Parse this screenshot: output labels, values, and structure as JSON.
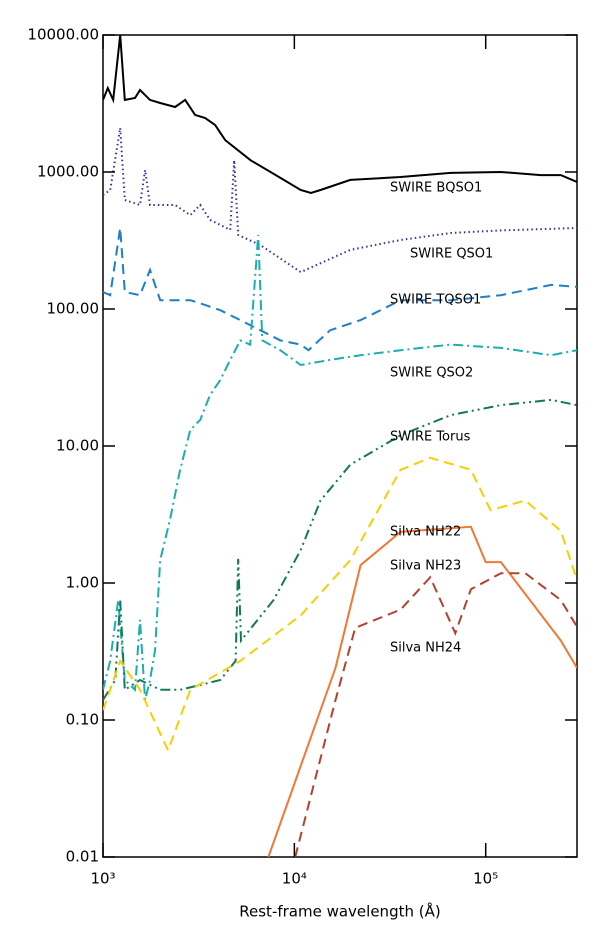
{
  "chart_data": {
    "type": "line",
    "xlabel": "Rest-frame wavelength (Å)",
    "xscale": "log",
    "yscale": "log",
    "xlim": [
      1000,
      300000
    ],
    "ylim": [
      0.01,
      10000
    ],
    "xticks": [
      {
        "value": 1000,
        "label": "10³"
      },
      {
        "value": 10000,
        "label": "10⁴"
      },
      {
        "value": 100000,
        "label": "10⁵"
      }
    ],
    "yticks": [
      {
        "value": 0.01,
        "label": "0.01"
      },
      {
        "value": 0.1,
        "label": "0.10"
      },
      {
        "value": 1,
        "label": "1.00"
      },
      {
        "value": 10,
        "label": "10.00"
      },
      {
        "value": 100,
        "label": "100.00"
      },
      {
        "value": 1000,
        "label": "1000.00"
      },
      {
        "value": 10000,
        "label": "10000.00"
      }
    ],
    "series": [
      {
        "name": "SWIRE BQSO1",
        "color": "#000000",
        "style": "solid",
        "x": [
          1000,
          1060,
          1130,
          1230,
          1300,
          1470,
          1560,
          1760,
          1990,
          2380,
          2690,
          3030,
          3420,
          3860,
          4350,
          5900,
          8000,
          10800,
          12200,
          13700,
          19600,
          35900,
          65600,
          120000,
          194000,
          247000,
          300000
        ],
        "values": [
          3360,
          4100,
          3360,
          10000,
          3360,
          3470,
          3970,
          3360,
          3190,
          2980,
          3360,
          2610,
          2480,
          2200,
          1710,
          1220,
          950,
          739,
          703,
          739,
          875,
          920,
          985,
          1000,
          950,
          950,
          845
        ]
      },
      {
        "name": "SWIRE QSO1",
        "color": "#333399",
        "style": "dotted",
        "x": [
          1000,
          1090,
          1230,
          1300,
          1560,
          1660,
          1760,
          2380,
          2860,
          3220,
          3630,
          4620,
          4850,
          5090,
          6640,
          10800,
          19600,
          35900,
          65600,
          120000,
          300000
        ],
        "values": [
          679,
          739,
          2100,
          625,
          574,
          1035,
          574,
          574,
          485,
          574,
          447,
          378,
          1220,
          347,
          293,
          186,
          270,
          319,
          359,
          375,
          390
        ]
      },
      {
        "name": "SWIRE TQSO1",
        "color": "#1e7fc8",
        "style": "dashed",
        "x": [
          1000,
          1090,
          1230,
          1300,
          1560,
          1760,
          1990,
          2860,
          3220,
          4100,
          5220,
          6640,
          8440,
          10800,
          11850,
          15400,
          22200,
          35900,
          65600,
          120000,
          220000,
          300000
        ],
        "values": [
          133,
          126,
          390,
          133,
          126,
          193,
          116,
          116,
          110,
          98,
          83,
          70,
          59,
          55,
          50,
          70,
          83,
          116,
          116,
          126,
          150,
          145
        ]
      },
      {
        "name": "SWIRE QSO2",
        "color": "#1aaeb0",
        "style": "dashdot",
        "x": [
          1000,
          1090,
          1200,
          1300,
          1470,
          1560,
          1660,
          1760,
          1870,
          1990,
          2240,
          2530,
          2860,
          3220,
          3630,
          4100,
          4620,
          5220,
          5880,
          6470,
          6800,
          8440,
          10800,
          15400,
          22200,
          35900,
          65600,
          120000,
          220000,
          300000
        ],
        "values": [
          0.166,
          0.27,
          0.75,
          0.196,
          0.166,
          0.54,
          0.14,
          0.196,
          0.32,
          1.47,
          2.9,
          6.7,
          13.1,
          15.5,
          23.6,
          30.3,
          42.5,
          59,
          55,
          347,
          59,
          50,
          39,
          42.5,
          46,
          50,
          55,
          52,
          46,
          50
        ]
      },
      {
        "name": "SWIRE Torus",
        "color": "#117a55",
        "style": "dashdotdot",
        "x": [
          1000,
          1160,
          1230,
          1300,
          1560,
          1990,
          2530,
          3220,
          4100,
          4930,
          5090,
          5260,
          7780,
          10800,
          13700,
          19600,
          35900,
          65600,
          120000,
          220000,
          300000
        ],
        "values": [
          0.14,
          0.196,
          0.75,
          0.166,
          0.196,
          0.166,
          0.166,
          0.18,
          0.196,
          0.27,
          1.5,
          0.38,
          0.75,
          1.74,
          4.0,
          7.3,
          12,
          16.8,
          19.9,
          21.7,
          19.9
        ]
      },
      {
        "name": "Silva NH22",
        "color": "#f5d000",
        "style": "dashed",
        "x": [
          1000,
          1230,
          1560,
          2190,
          2860,
          5220,
          10800,
          19600,
          35900,
          51300,
          83700,
          106000,
          161000,
          247000,
          300000
        ],
        "values": [
          0.118,
          0.27,
          0.166,
          0.06,
          0.166,
          0.27,
          0.58,
          1.47,
          6.7,
          8.2,
          6.7,
          3.4,
          4.0,
          2.4,
          1.05
        ]
      },
      {
        "name": "Silva NH23",
        "color": "#f07832",
        "style": "solid",
        "x": [
          7320,
          16400,
          22200,
          35900,
          83700,
          100000,
          120000,
          247000,
          300000
        ],
        "values": [
          0.01,
          0.24,
          1.35,
          2.36,
          2.57,
          1.42,
          1.42,
          0.38,
          0.24
        ]
      },
      {
        "name": "Silva NH24",
        "color": "#b5402e",
        "style": "dashed",
        "x": [
          10100,
          16400,
          20800,
          35900,
          51300,
          69400,
          83700,
          120000,
          161000,
          247000,
          300000
        ],
        "values": [
          0.01,
          0.14,
          0.47,
          0.64,
          1.1,
          0.43,
          0.9,
          1.18,
          1.18,
          0.75,
          0.48
        ]
      }
    ]
  }
}
